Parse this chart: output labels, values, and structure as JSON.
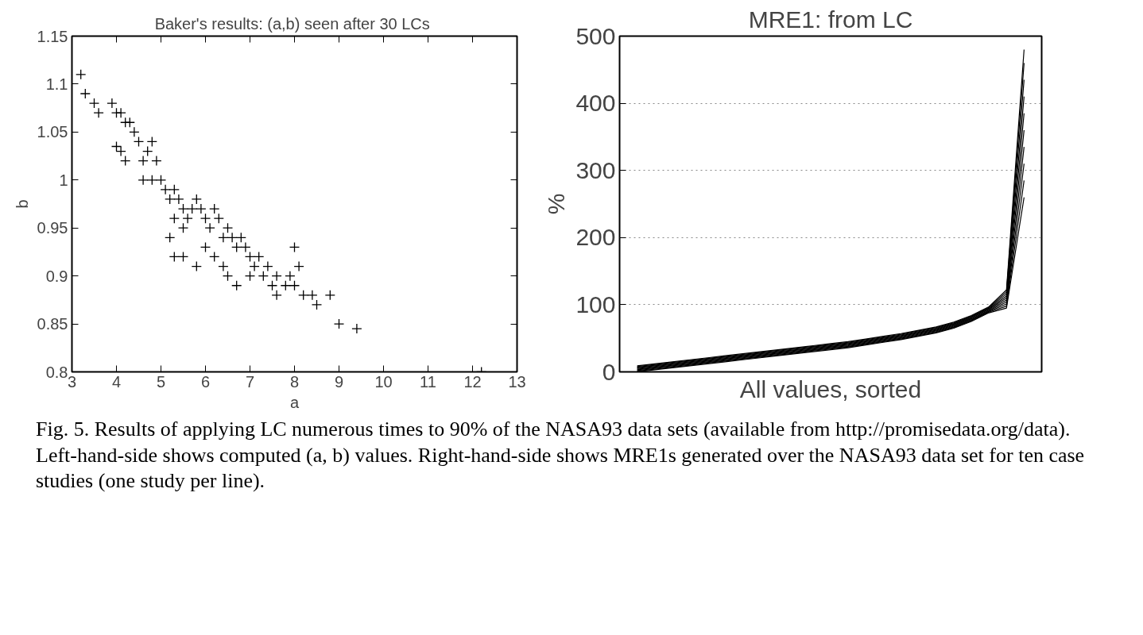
{
  "chart_data": [
    {
      "type": "scatter",
      "title": "Baker's results: (a,b) seen after 30  LCs",
      "xlabel": "a",
      "ylabel": "b",
      "marker": "cross",
      "grid": false,
      "xlim": [
        3,
        13
      ],
      "ylim": [
        0.8,
        1.15
      ],
      "xticks": [
        3,
        4,
        5,
        6,
        7,
        8,
        9,
        10,
        11,
        12,
        13
      ],
      "yticks": [
        0.8,
        0.85,
        0.9,
        0.95,
        1,
        1.05,
        1.1,
        1.15
      ],
      "x": [
        3.2,
        3.3,
        3.5,
        3.6,
        3.9,
        4.0,
        4.1,
        4.2,
        4.3,
        4.0,
        4.1,
        4.2,
        4.4,
        4.5,
        4.6,
        4.7,
        4.8,
        4.9,
        4.8,
        4.6,
        5.0,
        5.1,
        5.2,
        5.3,
        5.4,
        5.5,
        5.6,
        5.3,
        5.5,
        5.7,
        5.8,
        5.9,
        6.0,
        6.1,
        6.2,
        6.3,
        6.4,
        6.5,
        6.6,
        6.7,
        6.8,
        6.9,
        7.0,
        6.0,
        6.2,
        6.4,
        5.3,
        5.2,
        5.8,
        6.5,
        6.7,
        7.1,
        7.2,
        7.3,
        7.4,
        7.6,
        7.8,
        7.9,
        8.0,
        8.1,
        8.2,
        8.4,
        8.5,
        8.8,
        8.0,
        7.5,
        7.6,
        7.0,
        5.5,
        9.0,
        9.4,
        12.2
      ],
      "series": [
        {
          "color": "#000000",
          "values": [
            1.11,
            1.09,
            1.08,
            1.07,
            1.08,
            1.07,
            1.07,
            1.06,
            1.06,
            1.035,
            1.03,
            1.02,
            1.05,
            1.04,
            1.02,
            1.03,
            1.04,
            1.02,
            1.0,
            1.0,
            1.0,
            0.99,
            0.98,
            0.99,
            0.98,
            0.97,
            0.96,
            0.96,
            0.95,
            0.97,
            0.98,
            0.97,
            0.96,
            0.95,
            0.97,
            0.96,
            0.94,
            0.95,
            0.94,
            0.93,
            0.94,
            0.93,
            0.92,
            0.93,
            0.92,
            0.91,
            0.92,
            0.94,
            0.91,
            0.9,
            0.89,
            0.91,
            0.92,
            0.9,
            0.91,
            0.9,
            0.89,
            0.9,
            0.89,
            0.91,
            0.88,
            0.88,
            0.87,
            0.88,
            0.93,
            0.89,
            0.88,
            0.9,
            0.92,
            0.85,
            0.845,
            0.8
          ]
        }
      ]
    },
    {
      "type": "line",
      "title": "MRE1: from LC",
      "xlabel": "All values, sorted",
      "ylabel": "%",
      "marker": "none",
      "line_style": "solid",
      "grid": "y",
      "tick_labels": "y",
      "ylim": [
        0,
        500
      ],
      "yticks": [
        0,
        100,
        200,
        300,
        400,
        500
      ],
      "categories": [
        null,
        null,
        null,
        null,
        null,
        null,
        null,
        null,
        null,
        null,
        null,
        null,
        null,
        null,
        null,
        null,
        null,
        null,
        null,
        null,
        null,
        null,
        null
      ],
      "series": [
        {
          "color": "#000000",
          "values": [
            0,
            3,
            6,
            9,
            12,
            15,
            18,
            21,
            24,
            27,
            30,
            33,
            36,
            40,
            44,
            48,
            53,
            58,
            65,
            75,
            88,
            95,
            260
          ]
        },
        {
          "color": "#000000",
          "values": [
            1,
            4,
            7,
            10,
            13,
            16,
            19,
            22,
            25,
            28,
            31,
            34,
            37,
            41,
            45,
            49,
            54,
            59,
            66,
            76,
            89,
            98,
            285
          ]
        },
        {
          "color": "#000000",
          "values": [
            2,
            5,
            8,
            11,
            14,
            17,
            20,
            23,
            26,
            29,
            32,
            35,
            38,
            42,
            46,
            50,
            55,
            60,
            67,
            77,
            90,
            101,
            310
          ]
        },
        {
          "color": "#000000",
          "values": [
            3,
            6,
            9,
            12,
            15,
            18,
            21,
            24,
            27,
            30,
            33,
            36,
            39,
            43,
            47,
            51,
            56,
            61,
            68,
            78,
            91,
            104,
            335
          ]
        },
        {
          "color": "#000000",
          "values": [
            4,
            7,
            10,
            13,
            16,
            19,
            22,
            25,
            28,
            31,
            34,
            37,
            40,
            44,
            48,
            52,
            57,
            62,
            69,
            79,
            92,
            107,
            360
          ]
        },
        {
          "color": "#000000",
          "values": [
            5,
            8,
            11,
            14,
            17,
            20,
            23,
            26,
            29,
            32,
            35,
            38,
            41,
            45,
            49,
            53,
            58,
            63,
            70,
            80,
            93,
            110,
            385
          ]
        },
        {
          "color": "#000000",
          "values": [
            6,
            9,
            12,
            15,
            18,
            21,
            24,
            27,
            30,
            33,
            36,
            39,
            42,
            46,
            50,
            54,
            59,
            64,
            71,
            81,
            94,
            113,
            410
          ]
        },
        {
          "color": "#000000",
          "values": [
            7,
            10,
            13,
            16,
            19,
            22,
            25,
            28,
            31,
            34,
            37,
            40,
            43,
            47,
            51,
            55,
            60,
            65,
            72,
            82,
            95,
            116,
            435
          ]
        },
        {
          "color": "#000000",
          "values": [
            8,
            11,
            14,
            17,
            20,
            23,
            26,
            29,
            32,
            35,
            38,
            41,
            44,
            48,
            52,
            56,
            61,
            66,
            73,
            83,
            96,
            119,
            460
          ]
        },
        {
          "color": "#000000",
          "values": [
            9,
            12,
            15,
            18,
            21,
            24,
            27,
            30,
            33,
            36,
            39,
            42,
            45,
            49,
            53,
            57,
            62,
            67,
            74,
            84,
            97,
            122,
            480
          ]
        }
      ],
      "annotations": [
        "Fig. 5. Results of applying LC numerous times to 90% of the NASA93 data sets (available from http://promisedata.org/data). Left-hand-side shows computed (a, b) values. Right-hand-side shows MRE1s generated over the NASA93 data set for ten case studies (one study per line)."
      ]
    }
  ]
}
